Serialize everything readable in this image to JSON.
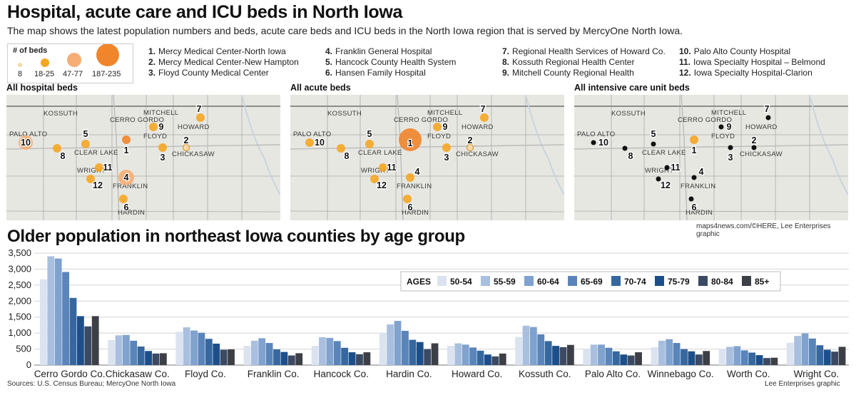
{
  "title": "Hospital, acute care and ICU beds in North Iowa",
  "subtitle": "The map shows the latest population numbers and beds, acute care beds and ICU beds in the North Iowa region that is served by MercyOne North Iowa.",
  "bed_legend": {
    "title": "# of beds",
    "sizes": [
      {
        "label": "8",
        "color": "#f9d9a5"
      },
      {
        "label": "18-25",
        "color": "#f5a623"
      },
      {
        "label": "47-77",
        "color": "#f6ae76"
      },
      {
        "label": "187-235",
        "color": "#f0852c"
      }
    ]
  },
  "hospitals": [
    {
      "num": "1.",
      "name": "Mercy Medical Center-North Iowa"
    },
    {
      "num": "2.",
      "name": "Mercy Medical Center-New Hampton"
    },
    {
      "num": "3.",
      "name": "Floyd County Medical Center"
    },
    {
      "num": "4.",
      "name": "Franklin General Hospital"
    },
    {
      "num": "5.",
      "name": "Hancock County Health System"
    },
    {
      "num": "6.",
      "name": "Hansen Family Hospital"
    },
    {
      "num": "7.",
      "name": "Regional Health Services of Howard Co."
    },
    {
      "num": "8.",
      "name": "Kossuth Regional Health Center"
    },
    {
      "num": "9.",
      "name": "Mitchell County Regional Health"
    },
    {
      "num": "10.",
      "name": "Palo Alto County Hospital"
    },
    {
      "num": "11.",
      "name": "Iowa Specialty Hospital – Belmond"
    },
    {
      "num": "12.",
      "name": "Iowa Specialty Hospital-Clarion"
    }
  ],
  "maps": [
    {
      "title": "All hospital beds",
      "sizes": [
        "md",
        "sm",
        "md",
        "lg",
        "md",
        "md",
        "md",
        "md",
        "md",
        "lg2",
        "md",
        "md"
      ],
      "colors": [
        "#f0852c",
        "#f9d9a5",
        "#f5a623",
        "#f6ae76",
        "#f5a623",
        "#f5a623",
        "#f5a623",
        "#f5a623",
        "#f5a623",
        "#f6ae76",
        "#f5a623",
        "#f5a623"
      ]
    },
    {
      "title": "All acute beds",
      "sizes": [
        "xl",
        "sm",
        "md",
        "md",
        "md",
        "md",
        "md",
        "md",
        "md",
        "md",
        "md",
        "md"
      ],
      "colors": [
        "#f0852c",
        "#f9d9a5",
        "#f5a623",
        "#f5a623",
        "#f5a623",
        "#f5a623",
        "#f5a623",
        "#f5a623",
        "#f5a623",
        "#f5a623",
        "#f5a623",
        "#f5a623"
      ]
    },
    {
      "title": "All intensive care unit beds",
      "sizes": [
        "md",
        "dot",
        "dot",
        "dot",
        "dot",
        "dot",
        "dot",
        "dot",
        "dot",
        "dot",
        "dot",
        "dot"
      ],
      "colors": [
        "#f5a623",
        "#111111",
        "#111111",
        "#111111",
        "#111111",
        "#111111",
        "#111111",
        "#111111",
        "#111111",
        "#111111",
        "#111111",
        "#111111"
      ]
    }
  ],
  "map_places": [
    "KOSSUTH",
    "MITCHELL",
    "HOWARD",
    "CERRO GORDO",
    "FLOYD",
    "PALO ALTO",
    "CLEAR LAKE",
    "CHICKASAW",
    "WRIGHT",
    "FRANKLIN",
    "HARDIN"
  ],
  "map_numbers": [
    "1",
    "2",
    "3",
    "4",
    "5",
    "6",
    "7",
    "8",
    "9",
    "10",
    "11",
    "12"
  ],
  "map_credit": "maps4news.com/©HERE, Lee Enterprises graphic",
  "chart_title": "Older population in northeast Iowa counties by age group",
  "sources": "Sources: U.S. Census Bureau; MercyOne North Iowa",
  "chart_credit": "Lee Enterprises graphic",
  "chart_data": {
    "type": "bar",
    "title": "Older population in northeast Iowa counties by age group",
    "xlabel": "",
    "ylabel": "",
    "ylim": [
      0,
      3500
    ],
    "yticks": [
      0,
      500,
      1000,
      1500,
      2000,
      2500,
      3000,
      3500
    ],
    "ytick_labels": [
      "0",
      "500",
      "1,000",
      "1,500",
      "2,000",
      "2,500",
      "3,000",
      "3,500"
    ],
    "legend_title": "AGES",
    "categories": [
      "Cerro Gordo Co.",
      "Chickasaw Co.",
      "Floyd Co.",
      "Franklin Co.",
      "Hancock Co.",
      "Hardin Co.",
      "Howard Co.",
      "Kossuth Co.",
      "Palo Alto Co.",
      "Winnebago Co.",
      "Worth Co.",
      "Wright Co."
    ],
    "series": [
      {
        "name": "50-54",
        "color": "#dbe3f0",
        "values": [
          2680,
          780,
          1040,
          600,
          600,
          1010,
          600,
          880,
          510,
          560,
          500,
          700
        ]
      },
      {
        "name": "55-59",
        "color": "#a9bfdf",
        "values": [
          3400,
          930,
          1180,
          760,
          870,
          1270,
          680,
          1230,
          640,
          760,
          570,
          910
        ]
      },
      {
        "name": "60-64",
        "color": "#7fa2cf",
        "values": [
          3330,
          940,
          1080,
          840,
          850,
          1380,
          640,
          1190,
          640,
          810,
          590,
          990
        ]
      },
      {
        "name": "65-69",
        "color": "#5985ba",
        "values": [
          2910,
          760,
          1010,
          690,
          750,
          1070,
          550,
          960,
          540,
          690,
          460,
          830
        ]
      },
      {
        "name": "70-74",
        "color": "#36689f",
        "values": [
          2100,
          580,
          820,
          490,
          540,
          790,
          450,
          750,
          430,
          500,
          390,
          620
        ]
      },
      {
        "name": "75-79",
        "color": "#1c4f8a",
        "values": [
          1530,
          440,
          670,
          410,
          400,
          720,
          330,
          600,
          330,
          430,
          310,
          480
        ]
      },
      {
        "name": "80-84",
        "color": "#3b4a62",
        "values": [
          1210,
          360,
          480,
          300,
          340,
          500,
          270,
          560,
          300,
          330,
          220,
          420
        ]
      },
      {
        "name": "85+",
        "color": "#3c3f45",
        "values": [
          1530,
          370,
          490,
          370,
          400,
          680,
          360,
          630,
          400,
          440,
          230,
          570
        ]
      }
    ]
  }
}
